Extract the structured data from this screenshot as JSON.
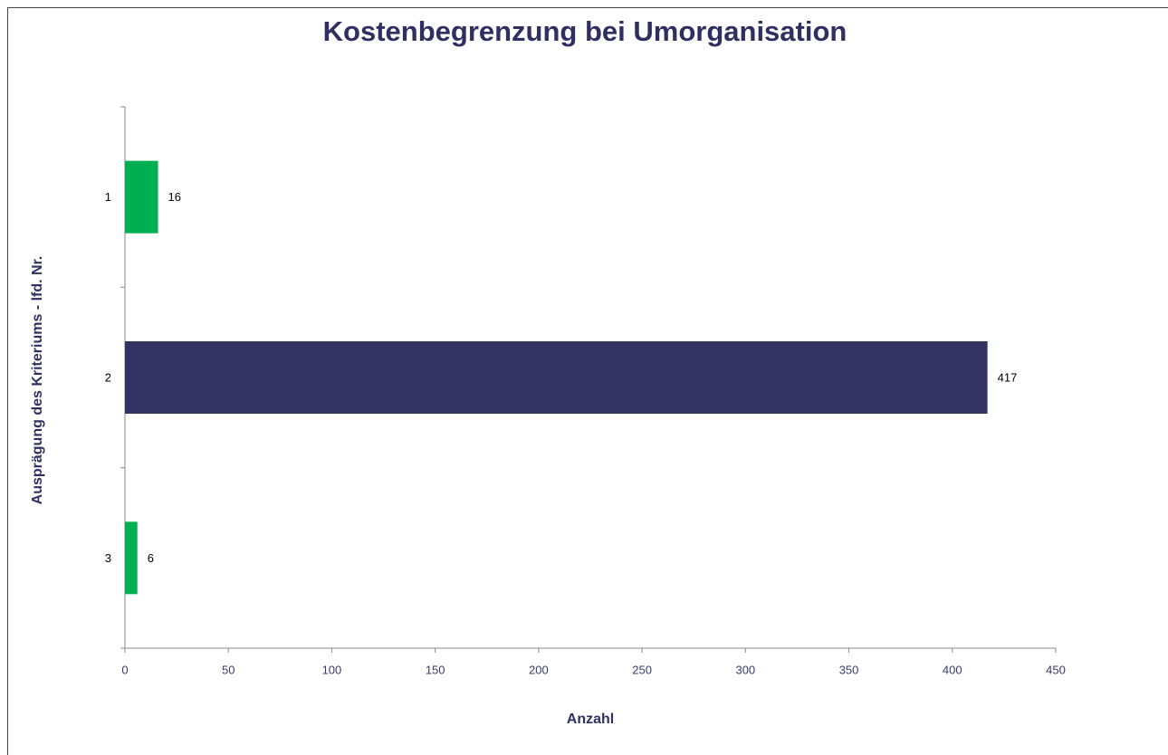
{
  "chart_data": {
    "type": "bar",
    "orientation": "horizontal",
    "title": "Kostenbegrenzung bei Umorganisation",
    "x_label": "Anzahl",
    "y_label": "Ausprägung des Kriteriums - lfd. Nr.",
    "categories": [
      "1",
      "2",
      "3"
    ],
    "values": [
      16,
      417,
      6
    ],
    "colors": [
      "#00b050",
      "#333363",
      "#00b050"
    ],
    "xlim": [
      0,
      450
    ],
    "xticks": [
      0,
      50,
      100,
      150,
      200,
      250,
      300,
      350,
      400,
      450
    ],
    "grid": false
  }
}
